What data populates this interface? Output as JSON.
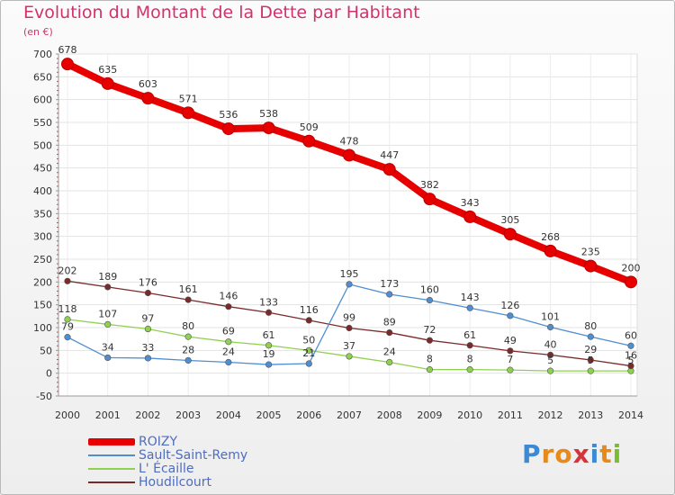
{
  "title": "Evolution du Montant de la Dette par Habitant",
  "subtitle": "(en €)",
  "brand": {
    "letters": [
      "P",
      "r",
      "o",
      "x",
      "i",
      "t",
      "i"
    ],
    "colors": [
      "#3a8ad6",
      "#e88a1a",
      "#e88a1a",
      "#d6343a",
      "#3a8ad6",
      "#e88a1a",
      "#7bbd2f"
    ]
  },
  "chart_data": {
    "type": "line",
    "x": [
      "2000",
      "2001",
      "2002",
      "2003",
      "2004",
      "2005",
      "2006",
      "2007",
      "2008",
      "2009",
      "2010",
      "2011",
      "2012",
      "2013",
      "2014"
    ],
    "ylim": [
      -50,
      700
    ],
    "yticks": [
      "-50",
      "0",
      "50",
      "100",
      "150",
      "200",
      "250",
      "300",
      "350",
      "400",
      "450",
      "500",
      "550",
      "600",
      "650",
      "700"
    ],
    "grid": true,
    "legend_position": "bottom-left",
    "series": [
      {
        "name": "ROIZY",
        "color": "#e60000",
        "values": [
          678,
          635,
          603,
          571,
          536,
          538,
          509,
          478,
          447,
          382,
          343,
          305,
          268,
          235,
          200
        ]
      },
      {
        "name": "Sault-Saint-Remy",
        "color": "#4f8fd1",
        "values": [
          79,
          34,
          33,
          28,
          24,
          19,
          21,
          195,
          173,
          160,
          143,
          126,
          101,
          80,
          60
        ]
      },
      {
        "name": "L' Écaille",
        "color": "#8fd14f",
        "values": [
          118,
          107,
          97,
          80,
          69,
          61,
          50,
          37,
          24,
          8,
          8,
          7,
          5,
          5,
          5
        ]
      },
      {
        "name": "Houdilcourt",
        "color": "#7a2a2a",
        "values": [
          202,
          189,
          176,
          161,
          146,
          133,
          116,
          99,
          89,
          72,
          61,
          49,
          40,
          29,
          16
        ]
      }
    ],
    "labels": [
      [
        "678",
        "635",
        "603",
        "571",
        "536",
        "538",
        "509",
        "478",
        "447",
        "382",
        "343",
        "305",
        "268",
        "235",
        "200"
      ],
      [
        "79",
        "34",
        "33",
        "28",
        "24",
        "19",
        "21",
        "195",
        "173",
        "160",
        "143",
        "126",
        "101",
        "80",
        "60"
      ],
      [
        "118",
        "107",
        "97",
        "80",
        "69",
        "61",
        "50",
        "37",
        "24",
        "8",
        "8",
        "7",
        "5",
        "5",
        "5"
      ],
      [
        "202",
        "189",
        "176",
        "161",
        "146",
        "133",
        "116",
        "99",
        "89",
        "72",
        "61",
        "49",
        "40",
        "29",
        "16"
      ]
    ]
  }
}
